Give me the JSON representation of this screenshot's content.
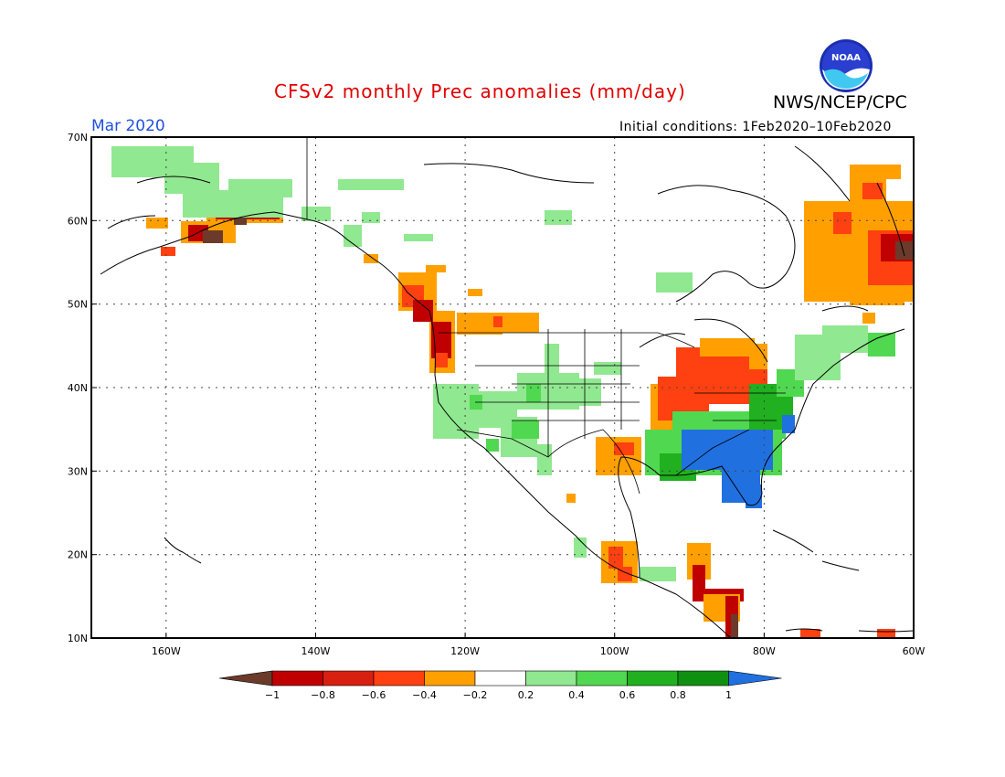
{
  "title": "CFSv2 monthly Prec anomalies (mm/day)",
  "agency": "NWS/NCEP/CPC",
  "logo_text": "NOAA",
  "month_label": "Mar 2020",
  "initial_conditions": "Initial conditions: 1Feb2020–10Feb2020",
  "map": {
    "lon_range": [
      -170,
      -60
    ],
    "lat_range": [
      10,
      70
    ],
    "lat_labels": [
      "70N",
      "60N",
      "50N",
      "40N",
      "30N",
      "20N",
      "10N"
    ],
    "lon_labels": [
      "160W",
      "140W",
      "120W",
      "100W",
      "80W",
      "60W"
    ]
  },
  "colorbar": {
    "levels": [
      "−1",
      "−0.8",
      "−0.6",
      "−0.4",
      "−0.2",
      "0.2",
      "0.4",
      "0.6",
      "0.8",
      "1"
    ],
    "colors": [
      "#6b3a2a",
      "#c00000",
      "#d82010",
      "#ff4010",
      "#ffa000",
      "#ffffff",
      "#90e890",
      "#50d850",
      "#20b020",
      "#109010",
      "#2070e0"
    ]
  },
  "anomaly_colors": {
    "very_dry": "#6b3a2a",
    "dry_strong": "#c00000",
    "dry": "#ff4010",
    "slightly_dry": "#ffa000",
    "slightly_wet": "#90e890",
    "wet": "#50d850",
    "wetter": "#20b020",
    "very_wet": "#2070e0"
  }
}
